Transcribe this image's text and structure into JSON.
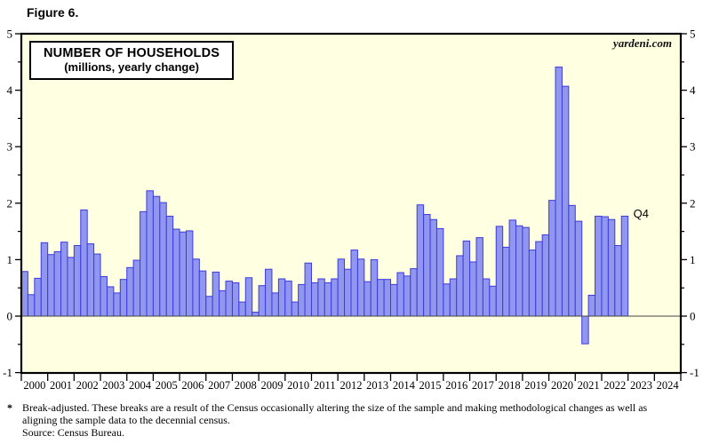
{
  "figure_label": "Figure 6.",
  "watermark": "yardeni.com",
  "title_line1": "NUMBER OF HOUSEHOLDS",
  "title_line2": "(millions, yearly change)",
  "q4_annotation": "Q4",
  "footnote": {
    "marker": "*",
    "line1": "Break-adjusted. These breaks are a result of the Census occasionally altering the size of the sample and making methodological changes as well as",
    "line2": "aligning the sample data to the decennial census.",
    "source": "Source: Census Bureau."
  },
  "colors": {
    "plot_bg": "#ffffe1",
    "bar_fill": "#9196ef",
    "bar_border": "#3b3be0",
    "frame": "#000000",
    "zero_line": "#444444",
    "tick": "#000000",
    "text": "#000000"
  },
  "chart_data": {
    "type": "bar",
    "title": "NUMBER OF HOUSEHOLDS (millions, yearly change)",
    "xlabel": "",
    "ylabel": "millions, yearly change",
    "ylim": [
      -1,
      5
    ],
    "y_major_ticks": [
      -1,
      0,
      1,
      2,
      3,
      4,
      5
    ],
    "y_minor_ticks": [
      -0.5,
      0.5,
      1.5,
      2.5,
      3.5,
      4.5
    ],
    "grid": false,
    "legend": "none",
    "frequency": "quarterly",
    "start_period": "2000Q1",
    "end_period": "2022Q4",
    "last_bar_annotation": "Q4",
    "year_labels": [
      "2000",
      "2001",
      "2002",
      "2003",
      "2004",
      "2005",
      "2006",
      "2007",
      "2008",
      "2009",
      "2010",
      "2011",
      "2012",
      "2013",
      "2014",
      "2015",
      "2016",
      "2017",
      "2018",
      "2019",
      "2020",
      "2021",
      "2022",
      "2023",
      "2024"
    ],
    "series": [
      {
        "name": "Number of households, yearly change (millions)",
        "values": [
          0.79,
          0.38,
          0.67,
          1.3,
          1.09,
          1.14,
          1.31,
          1.04,
          1.25,
          1.88,
          1.28,
          1.1,
          0.7,
          0.52,
          0.41,
          0.65,
          0.86,
          0.99,
          1.85,
          2.22,
          2.12,
          2.01,
          1.77,
          1.54,
          1.49,
          1.51,
          1.01,
          0.8,
          0.35,
          0.78,
          0.45,
          0.62,
          0.59,
          0.25,
          0.68,
          0.07,
          0.54,
          0.83,
          0.41,
          0.66,
          0.62,
          0.25,
          0.56,
          0.94,
          0.59,
          0.66,
          0.59,
          0.66,
          1.01,
          0.83,
          1.17,
          1.01,
          0.61,
          1.0,
          0.65,
          0.65,
          0.56,
          0.77,
          0.71,
          0.84,
          1.97,
          1.8,
          1.71,
          1.55,
          0.57,
          0.66,
          1.07,
          1.33,
          0.96,
          1.39,
          0.66,
          0.53,
          1.59,
          1.22,
          1.7,
          1.6,
          1.57,
          1.17,
          1.32,
          1.44,
          2.05,
          4.41,
          4.07,
          1.96,
          1.68,
          -0.49,
          0.37,
          1.77,
          1.76,
          1.71,
          1.25,
          1.77
        ]
      }
    ]
  }
}
